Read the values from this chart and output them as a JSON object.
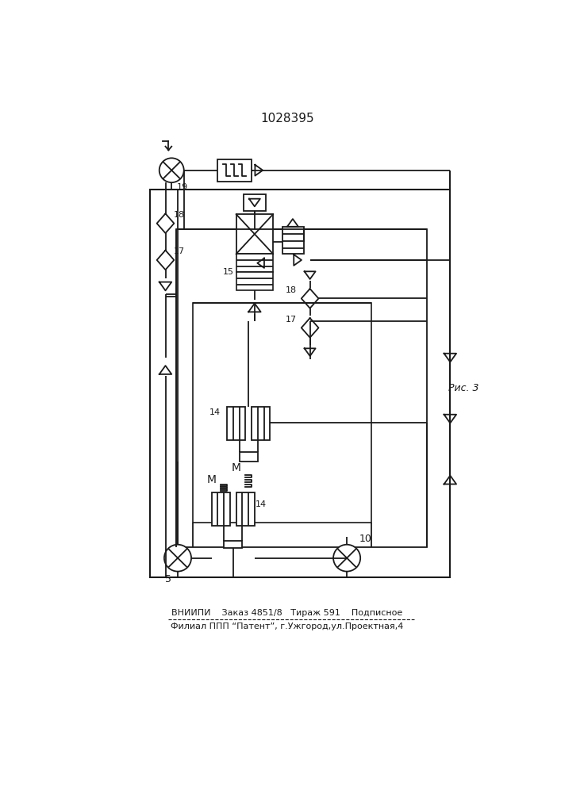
{
  "title": "1028395",
  "footer_line1": "ВНИИПИ    Заказ 4851/8   Тираж 591    Подписное",
  "footer_line2": "Филиал ППП “Патент”, г.Ужгород,ул.Проектная,4",
  "fig_label": "Рис. 3",
  "background_color": "#ffffff",
  "line_color": "#1a1a1a",
  "line_width": 1.3
}
